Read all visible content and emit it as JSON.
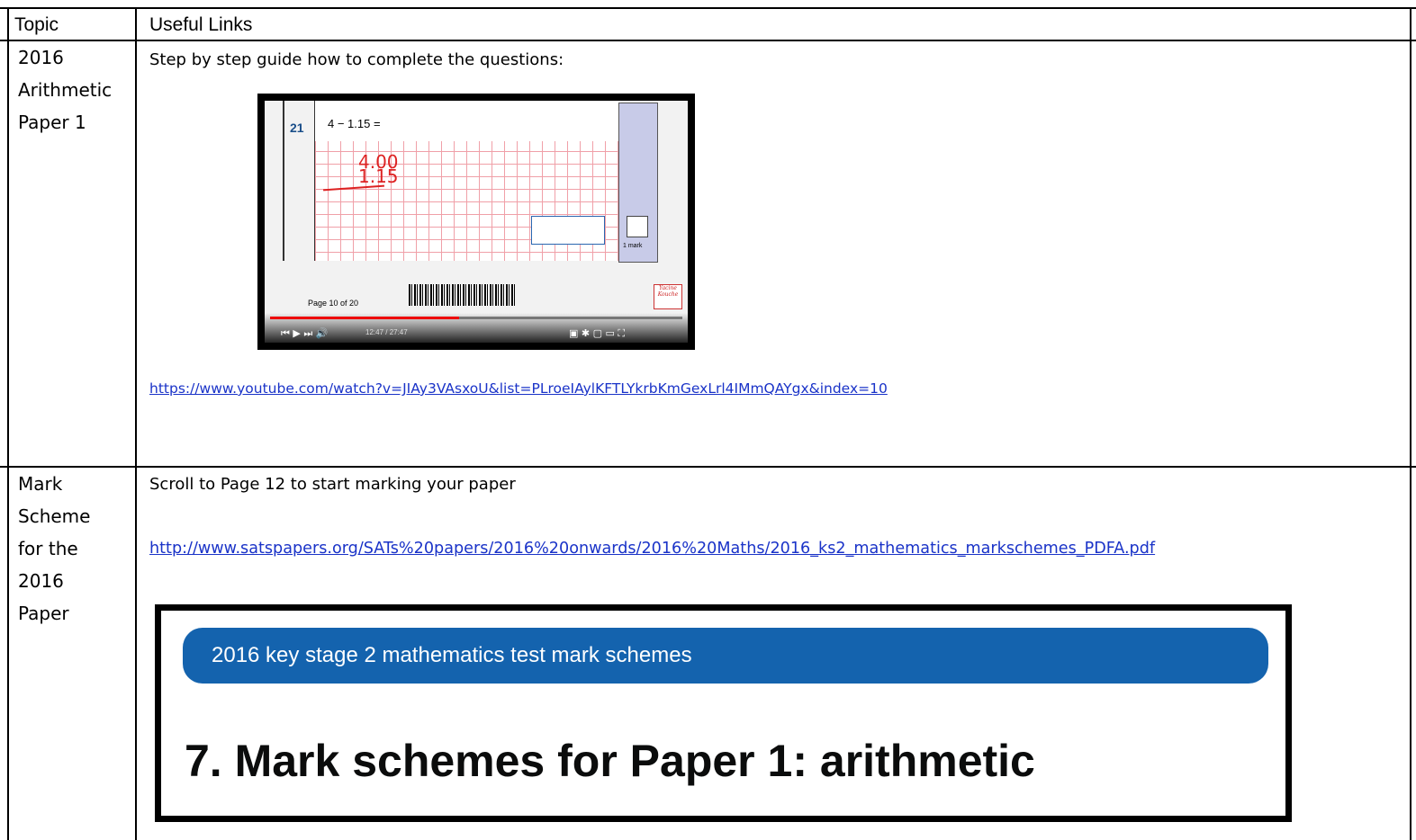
{
  "table": {
    "header": [
      "Topic",
      "Useful Links"
    ],
    "rows": [
      {
        "topic_lines": [
          "2016",
          "Arithmetic",
          "Paper 1"
        ],
        "intro": "Step by step guide how to complete the questions:",
        "video": {
          "question_number": "21",
          "question": "4 − 1.15 =",
          "work_top": "4.00",
          "work_bottom": "1.15",
          "mark": "1 mark",
          "page": "Page 10 of 20",
          "time": "12:47 / 27:47",
          "badge": "Yacine Kouche"
        },
        "link": "https://www.youtube.com/watch?v=JIAy3VAsxoU&list=PLroeIAylKFTLYkrbKmGexLrl4IMmQAYgx&index=10"
      },
      {
        "topic_lines": [
          "Mark",
          "Scheme",
          "for the",
          "2016",
          "Paper"
        ],
        "intro": "Scroll to Page 12 to start marking your paper",
        "link": "http://www.satspapers.org/SATs%20papers/2016%20onwards/2016%20Maths/2016_ks2_mathematics_markschemes_PDFA.pdf",
        "image": {
          "banner": "2016 key stage 2 mathematics test mark schemes",
          "heading": "7. Mark schemes for Paper 1: arithmetic"
        }
      }
    ]
  }
}
